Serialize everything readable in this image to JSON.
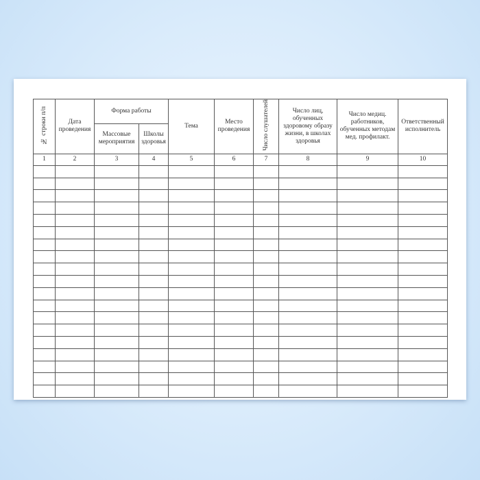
{
  "table": {
    "headers": {
      "row_no": "№ строки п/п",
      "date": "Дата проведения",
      "work_form": "Форма работы",
      "mass_events": "Массовые мероприятия",
      "health_schools": "Школы здоровья",
      "topic": "Тема",
      "place": "Место проведения",
      "listeners": "Число слушателей",
      "trained_people": "Число лиц, обученных здоровому образу жизни, в школах здоровья",
      "trained_medics": "Число медиц. работников, обученных методам мед. профилакт.",
      "responsible": "Ответственный исполнитель"
    },
    "column_numbers": [
      "1",
      "2",
      "3",
      "4",
      "5",
      "6",
      "7",
      "8",
      "9",
      "10"
    ],
    "empty_rows": 19
  }
}
